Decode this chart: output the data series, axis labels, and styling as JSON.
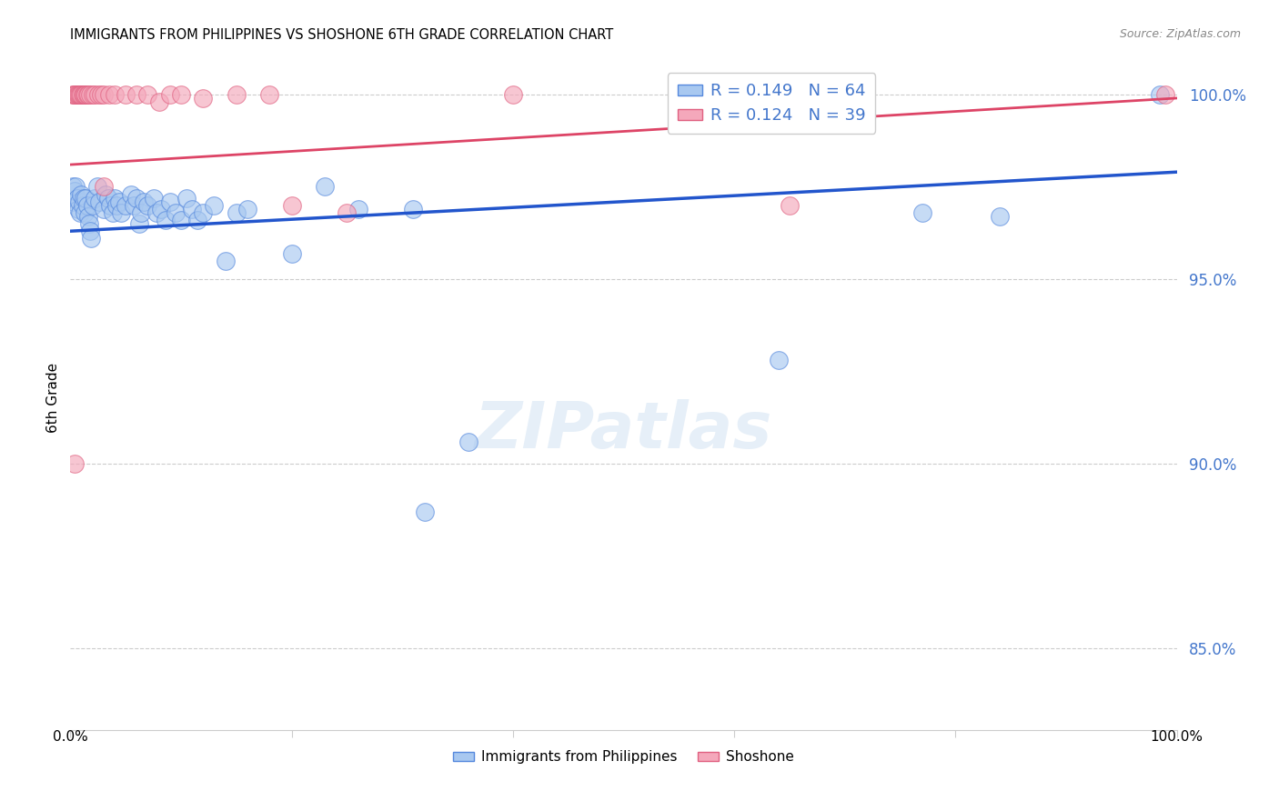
{
  "title": "IMMIGRANTS FROM PHILIPPINES VS SHOSHONE 6TH GRADE CORRELATION CHART",
  "source": "Source: ZipAtlas.com",
  "ylabel": "6th Grade",
  "yticks_pct": [
    100.0,
    95.0,
    90.0,
    85.0
  ],
  "xlim": [
    0.0,
    1.0
  ],
  "ylim": [
    0.828,
    1.008
  ],
  "legend_blue": "R = 0.149   N = 64",
  "legend_pink": "R = 0.124   N = 39",
  "legend_label_blue": "Immigrants from Philippines",
  "legend_label_pink": "Shoshone",
  "blue_fill": "#A8C8F0",
  "pink_fill": "#F4A8BB",
  "blue_edge": "#5588DD",
  "pink_edge": "#E06080",
  "trendline_blue_color": "#2255CC",
  "trendline_pink_color": "#DD4466",
  "blue_trend_x": [
    0.0,
    1.0
  ],
  "blue_trend_y": [
    0.963,
    0.979
  ],
  "pink_trend_x": [
    0.0,
    1.0
  ],
  "pink_trend_y": [
    0.981,
    0.999
  ],
  "blue_scatter": [
    [
      0.002,
      0.975
    ],
    [
      0.003,
      0.971
    ],
    [
      0.004,
      0.974
    ],
    [
      0.005,
      0.975
    ],
    [
      0.006,
      0.972
    ],
    [
      0.007,
      0.969
    ],
    [
      0.008,
      0.971
    ],
    [
      0.009,
      0.968
    ],
    [
      0.01,
      0.973
    ],
    [
      0.011,
      0.97
    ],
    [
      0.012,
      0.972
    ],
    [
      0.013,
      0.968
    ],
    [
      0.014,
      0.972
    ],
    [
      0.015,
      0.97
    ],
    [
      0.016,
      0.967
    ],
    [
      0.017,
      0.965
    ],
    [
      0.018,
      0.963
    ],
    [
      0.019,
      0.961
    ],
    [
      0.02,
      0.97
    ],
    [
      0.022,
      0.972
    ],
    [
      0.024,
      0.975
    ],
    [
      0.026,
      0.971
    ],
    [
      0.03,
      0.969
    ],
    [
      0.032,
      0.973
    ],
    [
      0.034,
      0.972
    ],
    [
      0.036,
      0.97
    ],
    [
      0.038,
      0.968
    ],
    [
      0.04,
      0.972
    ],
    [
      0.042,
      0.97
    ],
    [
      0.044,
      0.971
    ],
    [
      0.046,
      0.968
    ],
    [
      0.05,
      0.97
    ],
    [
      0.055,
      0.973
    ],
    [
      0.057,
      0.97
    ],
    [
      0.06,
      0.972
    ],
    [
      0.062,
      0.965
    ],
    [
      0.064,
      0.968
    ],
    [
      0.066,
      0.971
    ],
    [
      0.07,
      0.97
    ],
    [
      0.075,
      0.972
    ],
    [
      0.078,
      0.968
    ],
    [
      0.082,
      0.969
    ],
    [
      0.086,
      0.966
    ],
    [
      0.09,
      0.971
    ],
    [
      0.095,
      0.968
    ],
    [
      0.1,
      0.966
    ],
    [
      0.105,
      0.972
    ],
    [
      0.11,
      0.969
    ],
    [
      0.115,
      0.966
    ],
    [
      0.12,
      0.968
    ],
    [
      0.13,
      0.97
    ],
    [
      0.14,
      0.955
    ],
    [
      0.15,
      0.968
    ],
    [
      0.16,
      0.969
    ],
    [
      0.2,
      0.957
    ],
    [
      0.23,
      0.975
    ],
    [
      0.26,
      0.969
    ],
    [
      0.31,
      0.969
    ],
    [
      0.32,
      0.887
    ],
    [
      0.36,
      0.906
    ],
    [
      0.64,
      0.928
    ],
    [
      0.77,
      0.968
    ],
    [
      0.84,
      0.967
    ],
    [
      0.985,
      1.0
    ]
  ],
  "pink_scatter": [
    [
      0.002,
      1.0
    ],
    [
      0.003,
      1.0
    ],
    [
      0.004,
      1.0
    ],
    [
      0.005,
      1.0
    ],
    [
      0.006,
      1.0
    ],
    [
      0.007,
      1.0
    ],
    [
      0.008,
      1.0
    ],
    [
      0.009,
      1.0
    ],
    [
      0.01,
      1.0
    ],
    [
      0.011,
      1.0
    ],
    [
      0.012,
      1.0
    ],
    [
      0.013,
      1.0
    ],
    [
      0.014,
      1.0
    ],
    [
      0.015,
      1.0
    ],
    [
      0.016,
      1.0
    ],
    [
      0.018,
      1.0
    ],
    [
      0.02,
      1.0
    ],
    [
      0.022,
      1.0
    ],
    [
      0.025,
      1.0
    ],
    [
      0.028,
      1.0
    ],
    [
      0.03,
      1.0
    ],
    [
      0.035,
      1.0
    ],
    [
      0.04,
      1.0
    ],
    [
      0.05,
      1.0
    ],
    [
      0.06,
      1.0
    ],
    [
      0.07,
      1.0
    ],
    [
      0.08,
      0.998
    ],
    [
      0.09,
      1.0
    ],
    [
      0.1,
      1.0
    ],
    [
      0.12,
      0.999
    ],
    [
      0.15,
      1.0
    ],
    [
      0.18,
      1.0
    ],
    [
      0.2,
      0.97
    ],
    [
      0.25,
      0.968
    ],
    [
      0.03,
      0.975
    ],
    [
      0.4,
      1.0
    ],
    [
      0.004,
      0.9
    ],
    [
      0.65,
      0.97
    ],
    [
      0.99,
      1.0
    ]
  ]
}
